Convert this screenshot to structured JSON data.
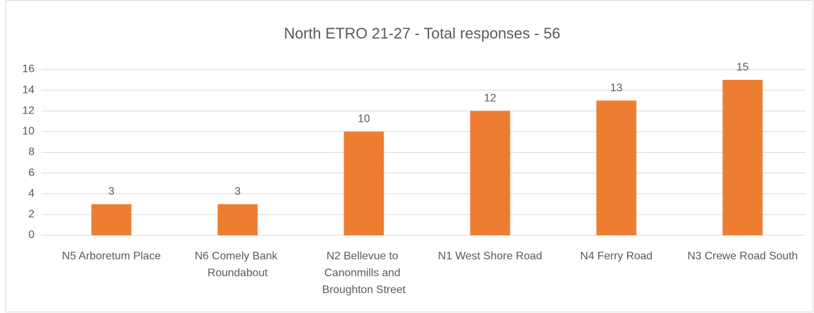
{
  "chart_data": {
    "type": "bar",
    "title": "North ETRO 21-27 - Total responses - 56",
    "categories": [
      "N5 Arboretum Place",
      "N6 Comely Bank Roundabout",
      "N2 Bellevue to Canonmills and Broughton Street",
      "N1 West Shore Road",
      "N4 Ferry Road",
      "N3 Crewe Road South"
    ],
    "values": [
      3,
      3,
      10,
      12,
      13,
      15
    ],
    "color": "#ed7d31",
    "ylim": [
      0,
      16
    ],
    "yticks": [
      0,
      2,
      4,
      6,
      8,
      10,
      12,
      14,
      16
    ],
    "grid": true
  }
}
